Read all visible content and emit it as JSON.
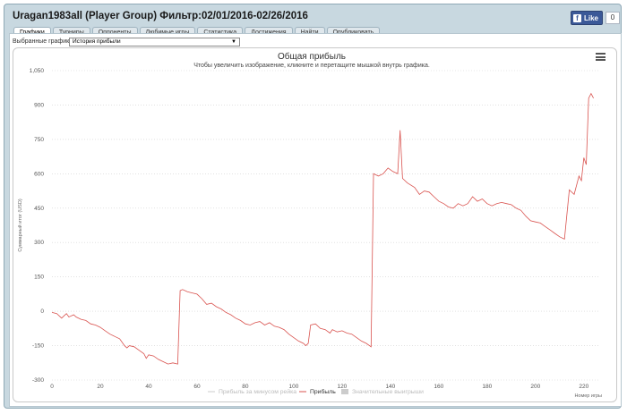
{
  "window": {
    "title": "Uragan1983all (Player Group) Фильтр:02/01/2016-02/26/2016"
  },
  "facebook": {
    "like_label": "Like",
    "count": "0"
  },
  "tabs": [
    {
      "label": "Графики",
      "active": true
    },
    {
      "label": "Турниры",
      "active": false
    },
    {
      "label": "Оппоненты",
      "active": false
    },
    {
      "label": "Любимые игры",
      "active": false
    },
    {
      "label": "Статистика",
      "active": false
    },
    {
      "label": "Достижения",
      "active": false
    },
    {
      "label": "Найти",
      "active": false
    },
    {
      "label": "Опубликовать",
      "active": false
    }
  ],
  "selector": {
    "label": "Выбранные графики:",
    "value": "История прибыли"
  },
  "icons": {
    "chart_menu": "hamburger-menu-icon",
    "fb": "facebook-f-icon"
  },
  "chart_data": {
    "type": "line",
    "title": "Общая прибыль",
    "subtitle": "Чтобы увеличить изображение, кликните и перетащите мышкой внутрь графика.",
    "xlabel": "Номер игры",
    "ylabel": "Суммарный итог (USD)",
    "xlim": [
      0,
      226
    ],
    "ylim": [
      -300,
      1050
    ],
    "xticks": [
      0,
      20,
      40,
      60,
      80,
      100,
      120,
      140,
      160,
      180,
      200,
      220
    ],
    "yticks": [
      -300,
      -150,
      0,
      150,
      300,
      450,
      600,
      750,
      900,
      "1,050"
    ],
    "grid": "horizontal-dotted",
    "legend_position": "bottom-center",
    "legend": [
      {
        "name": "Прибыль за минусом рейка",
        "color": "#cccccc",
        "visible": false
      },
      {
        "name": "Прибыль",
        "color": "#d9534f",
        "visible": true
      },
      {
        "name": "Значительные выигрыши",
        "color": "#cccccc",
        "visible": false
      }
    ],
    "series": [
      {
        "name": "Прибыль",
        "color": "#d9534f",
        "points": [
          [
            0,
            -5
          ],
          [
            2,
            -10
          ],
          [
            4,
            -30
          ],
          [
            5,
            -20
          ],
          [
            6,
            -10
          ],
          [
            7,
            -25
          ],
          [
            8,
            -20
          ],
          [
            9,
            -15
          ],
          [
            10,
            -25
          ],
          [
            12,
            -35
          ],
          [
            14,
            -40
          ],
          [
            16,
            -55
          ],
          [
            18,
            -60
          ],
          [
            20,
            -70
          ],
          [
            22,
            -85
          ],
          [
            24,
            -100
          ],
          [
            26,
            -110
          ],
          [
            28,
            -120
          ],
          [
            30,
            -150
          ],
          [
            31,
            -160
          ],
          [
            32,
            -150
          ],
          [
            34,
            -155
          ],
          [
            36,
            -170
          ],
          [
            38,
            -185
          ],
          [
            39,
            -205
          ],
          [
            40,
            -190
          ],
          [
            42,
            -195
          ],
          [
            44,
            -210
          ],
          [
            46,
            -220
          ],
          [
            48,
            -230
          ],
          [
            50,
            -225
          ],
          [
            52,
            -230
          ],
          [
            53,
            90
          ],
          [
            54,
            95
          ],
          [
            56,
            85
          ],
          [
            58,
            80
          ],
          [
            60,
            75
          ],
          [
            62,
            55
          ],
          [
            64,
            30
          ],
          [
            66,
            35
          ],
          [
            68,
            20
          ],
          [
            70,
            10
          ],
          [
            72,
            -5
          ],
          [
            74,
            -15
          ],
          [
            76,
            -30
          ],
          [
            78,
            -40
          ],
          [
            80,
            -55
          ],
          [
            82,
            -60
          ],
          [
            84,
            -50
          ],
          [
            86,
            -45
          ],
          [
            88,
            -60
          ],
          [
            90,
            -50
          ],
          [
            92,
            -65
          ],
          [
            94,
            -70
          ],
          [
            96,
            -80
          ],
          [
            98,
            -100
          ],
          [
            100,
            -115
          ],
          [
            102,
            -130
          ],
          [
            104,
            -140
          ],
          [
            105,
            -150
          ],
          [
            106,
            -140
          ],
          [
            107,
            -60
          ],
          [
            109,
            -55
          ],
          [
            111,
            -75
          ],
          [
            113,
            -80
          ],
          [
            115,
            -95
          ],
          [
            116,
            -80
          ],
          [
            118,
            -90
          ],
          [
            120,
            -85
          ],
          [
            122,
            -95
          ],
          [
            124,
            -100
          ],
          [
            126,
            -115
          ],
          [
            128,
            -130
          ],
          [
            130,
            -140
          ],
          [
            132,
            -155
          ],
          [
            133,
            600
          ],
          [
            135,
            590
          ],
          [
            137,
            600
          ],
          [
            139,
            625
          ],
          [
            141,
            610
          ],
          [
            143,
            600
          ],
          [
            144,
            790
          ],
          [
            145,
            580
          ],
          [
            147,
            560
          ],
          [
            150,
            540
          ],
          [
            152,
            510
          ],
          [
            154,
            525
          ],
          [
            156,
            520
          ],
          [
            158,
            500
          ],
          [
            160,
            480
          ],
          [
            162,
            470
          ],
          [
            164,
            455
          ],
          [
            166,
            450
          ],
          [
            168,
            470
          ],
          [
            170,
            460
          ],
          [
            172,
            470
          ],
          [
            174,
            500
          ],
          [
            176,
            480
          ],
          [
            178,
            490
          ],
          [
            180,
            470
          ],
          [
            182,
            460
          ],
          [
            184,
            470
          ],
          [
            186,
            475
          ],
          [
            188,
            470
          ],
          [
            190,
            465
          ],
          [
            192,
            450
          ],
          [
            194,
            440
          ],
          [
            196,
            415
          ],
          [
            198,
            395
          ],
          [
            200,
            390
          ],
          [
            202,
            385
          ],
          [
            204,
            370
          ],
          [
            206,
            355
          ],
          [
            208,
            340
          ],
          [
            210,
            325
          ],
          [
            212,
            315
          ],
          [
            214,
            530
          ],
          [
            216,
            510
          ],
          [
            218,
            590
          ],
          [
            219,
            570
          ],
          [
            220,
            670
          ],
          [
            221,
            640
          ],
          [
            222,
            930
          ],
          [
            223,
            950
          ],
          [
            224,
            930
          ]
        ]
      }
    ]
  }
}
